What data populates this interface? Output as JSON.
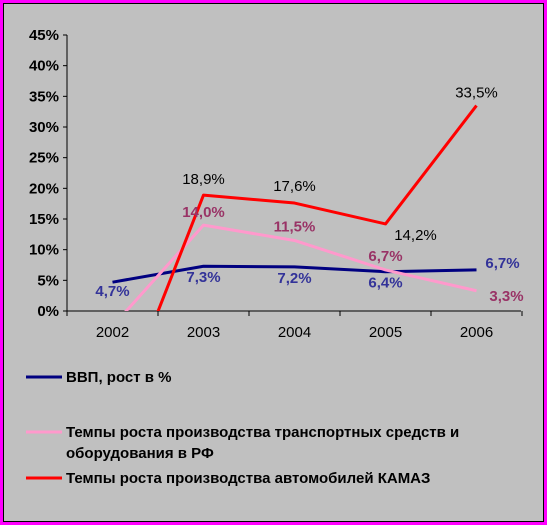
{
  "chart_data": {
    "type": "line",
    "x": [
      "2002",
      "2003",
      "2004",
      "2005",
      "2006"
    ],
    "ylim": [
      0,
      45
    ],
    "yticks": [
      "0%",
      "5%",
      "10%",
      "15%",
      "20%",
      "25%",
      "30%",
      "35%",
      "40%",
      "45%"
    ],
    "grid": false,
    "legend_position": "bottom",
    "series": [
      {
        "name": "ВВП, рост в %",
        "color": "#000080",
        "values": [
          4.7,
          7.3,
          7.2,
          6.4,
          6.7
        ],
        "labels": [
          "4,7%",
          "7,3%",
          "7,2%",
          "6,4%",
          "6,7%"
        ],
        "label_color": "#333399"
      },
      {
        "name": "Темпы роста производства транспортных средств и оборудования в РФ",
        "legend_lines": [
          "Темпы роста производства транспортных средств и",
          "оборудования в РФ"
        ],
        "color": "#FF99CC",
        "values": [
          -2.5,
          14.0,
          11.5,
          6.7,
          3.3
        ],
        "labels": [
          "",
          "14,0%",
          "11,5%",
          "6,7%",
          "3,3%"
        ],
        "label_color": "#993366"
      },
      {
        "name": "Темпы роста производства автомобилей КАМАЗ",
        "color": "#FF0000",
        "values": [
          -19.0,
          18.9,
          17.6,
          14.2,
          33.5
        ],
        "labels": [
          "",
          "18,9%",
          "17,6%",
          "14,2%",
          "33,5%"
        ],
        "label_color": "#000000"
      }
    ]
  }
}
